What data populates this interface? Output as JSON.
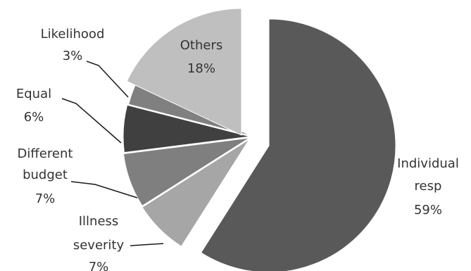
{
  "chart_data": {
    "type": "pie",
    "exploded": true,
    "legend": "none",
    "slices": [
      {
        "label": "Individual resp",
        "value": 59,
        "value_label": "59%",
        "label_lines": [
          "Individual",
          "resp"
        ],
        "color": "#595959"
      },
      {
        "label": "Illness severity",
        "value": 7,
        "value_label": "7%",
        "label_lines": [
          "Illness",
          "severity"
        ],
        "color": "#a6a6a6"
      },
      {
        "label": "Different budget",
        "value": 7,
        "value_label": "7%",
        "label_lines": [
          "Different",
          "budget"
        ],
        "color": "#7f7f7f"
      },
      {
        "label": "Equal",
        "value": 6,
        "value_label": "6%",
        "label_lines": [
          "Equal"
        ],
        "color": "#404040"
      },
      {
        "label": "Likelihood",
        "value": 3,
        "value_label": "3%",
        "label_lines": [
          "Likelihood"
        ],
        "color": "#808080"
      },
      {
        "label": "Others",
        "value": 18,
        "value_label": "18%",
        "label_lines": [
          "Others"
        ],
        "color": "#bfbfbf"
      }
    ]
  }
}
